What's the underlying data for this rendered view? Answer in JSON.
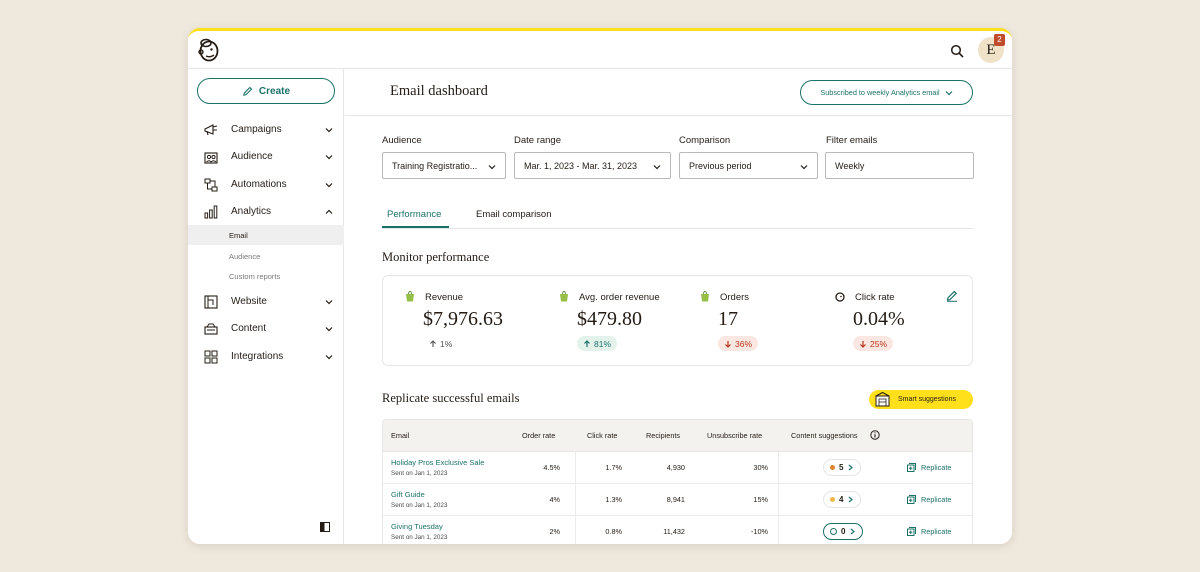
{
  "topbar": {
    "avatar_initial": "E",
    "notification_count": "2"
  },
  "sidebar": {
    "create_label": "Create",
    "items": [
      {
        "label": "Campaigns",
        "icon": "megaphone-icon"
      },
      {
        "label": "Audience",
        "icon": "people-icon"
      },
      {
        "label": "Automations",
        "icon": "flow-icon"
      },
      {
        "label": "Analytics",
        "icon": "bar-chart-icon"
      },
      {
        "label": "Website",
        "icon": "website-icon"
      },
      {
        "label": "Content",
        "icon": "content-icon"
      },
      {
        "label": "Integrations",
        "icon": "grid-icon"
      }
    ],
    "analytics_sub": [
      "Email",
      "Audience",
      "Custom reports"
    ]
  },
  "header": {
    "title": "Email dashboard",
    "subscribe_label": "Subscribed to weekly Analytics email"
  },
  "filters": {
    "audience": {
      "label": "Audience",
      "value": "Training Registratio..."
    },
    "date_range": {
      "label": "Date range",
      "value": "Mar. 1, 2023 - Mar. 31, 2023"
    },
    "comparison": {
      "label": "Comparison",
      "value": "Previous period"
    },
    "filter_emails": {
      "label": "Filter emails",
      "value": "Weekly"
    }
  },
  "tabs": [
    "Performance",
    "Email comparison"
  ],
  "monitor": {
    "title": "Monitor performance",
    "metrics": [
      {
        "label": "Revenue",
        "value": "$7,976.63",
        "change": "1%",
        "direction": "neutral"
      },
      {
        "label": "Avg. order revenue",
        "value": "$479.80",
        "change": "81%",
        "direction": "up"
      },
      {
        "label": "Orders",
        "value": "17",
        "change": "36%",
        "direction": "down"
      },
      {
        "label": "Click rate",
        "value": "0.04%",
        "change": "25%",
        "direction": "down"
      }
    ]
  },
  "replicate": {
    "title": "Replicate successful emails",
    "smart_label": "Smart suggestions",
    "columns": [
      "Email",
      "Order rate",
      "Click rate",
      "Recipients",
      "Unsubscribe rate",
      "Content suggestions"
    ],
    "rows": [
      {
        "name": "Holiday Pros Exclusive Sale",
        "date": "Sent on Jan 1, 2023",
        "order_rate": "4.5%",
        "click_rate": "1.7%",
        "recipients": "4,930",
        "unsub": "30%",
        "suggestions": "5",
        "dot": "#e0822e",
        "action": "Replicate"
      },
      {
        "name": "Gift Guide",
        "date": "Sent on Jan 1, 2023",
        "order_rate": "4%",
        "click_rate": "1.3%",
        "recipients": "8,941",
        "unsub": "15%",
        "suggestions": "4",
        "dot": "#f2b84b",
        "action": "Replicate"
      },
      {
        "name": "Giving Tuesday",
        "date": "Sent on Jan 1, 2023",
        "order_rate": "2%",
        "click_rate": "0.8%",
        "recipients": "11,432",
        "unsub": "-10%",
        "suggestions": "0",
        "dot": "",
        "action": "Replicate"
      }
    ]
  },
  "colors": {
    "accent": "#1b7269",
    "yellow": "#ffe01b",
    "down": "#b8351b",
    "background": "#efe8dc"
  }
}
